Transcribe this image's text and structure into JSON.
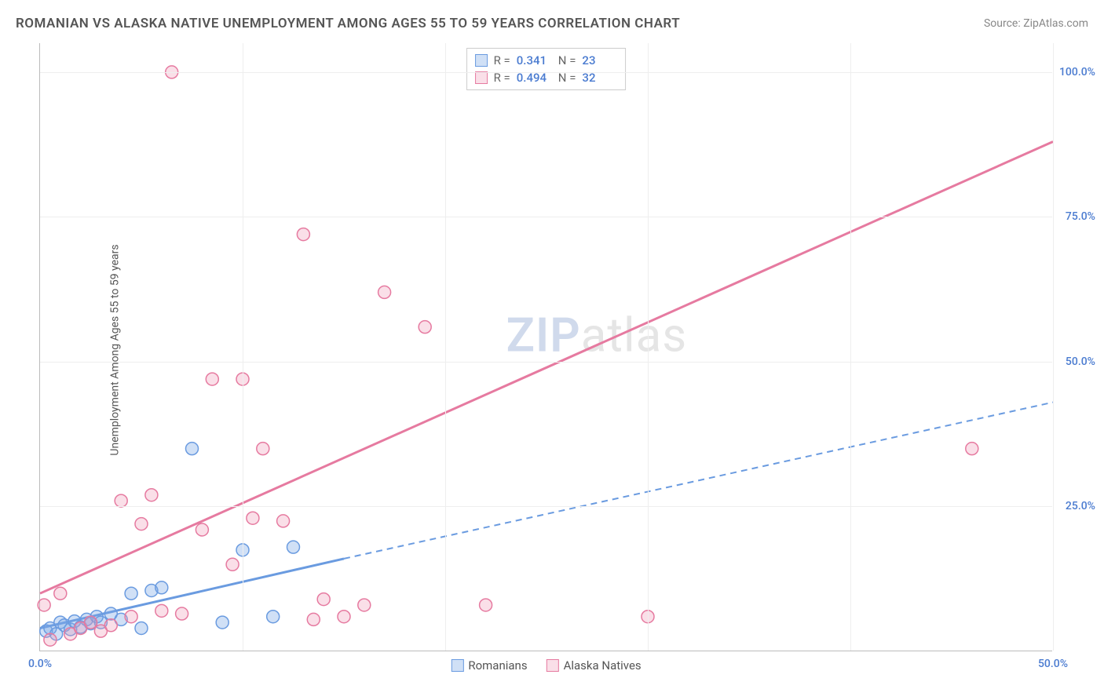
{
  "title": "ROMANIAN VS ALASKA NATIVE UNEMPLOYMENT AMONG AGES 55 TO 59 YEARS CORRELATION CHART",
  "source_prefix": "Source: ",
  "source_name": "ZipAtlas.com",
  "y_axis_label": "Unemployment Among Ages 55 to 59 years",
  "watermark_bold": "ZIP",
  "watermark_rest": "atlas",
  "chart": {
    "type": "scatter",
    "xlim": [
      0,
      50
    ],
    "ylim": [
      0,
      105
    ],
    "x_ticks": [
      0,
      10,
      20,
      30,
      40,
      50
    ],
    "y_ticks": [
      25,
      50,
      75,
      100
    ],
    "x_tick_labels": [
      "0.0%",
      "",
      "",
      "",
      "",
      "50.0%"
    ],
    "y_tick_labels": [
      "25.0%",
      "50.0%",
      "75.0%",
      "100.0%"
    ],
    "tick_color": "#4a7bd0",
    "grid_color": "#eeeeee",
    "axis_color": "#bbbbbb",
    "background_color": "#ffffff",
    "marker_radius": 8,
    "marker_stroke_width": 1.5,
    "line_width_solid": 3,
    "line_width_dashed": 2
  },
  "series": [
    {
      "name": "Romanians",
      "color_fill": "rgba(120,165,230,0.35)",
      "color_stroke": "#6a9be0",
      "R_label": "R =",
      "R": "0.341",
      "N_label": "N =",
      "N": "23",
      "trend": {
        "x1": 0,
        "y1": 4,
        "x2": 15,
        "y2": 16,
        "solid": true
      },
      "trend_ext": {
        "x1": 15,
        "y1": 16,
        "x2": 50,
        "y2": 43,
        "dashed": true
      },
      "points": [
        [
          0.3,
          3.5
        ],
        [
          0.5,
          4
        ],
        [
          0.8,
          3
        ],
        [
          1,
          5
        ],
        [
          1.2,
          4.5
        ],
        [
          1.5,
          3.8
        ],
        [
          1.7,
          5.2
        ],
        [
          2,
          4.2
        ],
        [
          2.3,
          5.5
        ],
        [
          2.5,
          4.8
        ],
        [
          2.8,
          6
        ],
        [
          3,
          5
        ],
        [
          3.5,
          6.5
        ],
        [
          4,
          5.5
        ],
        [
          4.5,
          10
        ],
        [
          5,
          4
        ],
        [
          5.5,
          10.5
        ],
        [
          6,
          11
        ],
        [
          7.5,
          35
        ],
        [
          9,
          5
        ],
        [
          10,
          17.5
        ],
        [
          11.5,
          6
        ],
        [
          12.5,
          18
        ]
      ]
    },
    {
      "name": "Alaska Natives",
      "color_fill": "rgba(240,150,180,0.30)",
      "color_stroke": "#e67aa0",
      "R_label": "R =",
      "R": "0.494",
      "N_label": "N =",
      "N": "32",
      "trend": {
        "x1": 0,
        "y1": 10,
        "x2": 50,
        "y2": 88,
        "solid": true
      },
      "points": [
        [
          0.2,
          8
        ],
        [
          0.5,
          2
        ],
        [
          1,
          10
        ],
        [
          1.5,
          3
        ],
        [
          2,
          4
        ],
        [
          2.5,
          5
        ],
        [
          3,
          3.5
        ],
        [
          3.5,
          4.5
        ],
        [
          4,
          26
        ],
        [
          4.5,
          6
        ],
        [
          5,
          22
        ],
        [
          5.5,
          27
        ],
        [
          6,
          7
        ],
        [
          6.5,
          100
        ],
        [
          7,
          6.5
        ],
        [
          8,
          21
        ],
        [
          8.5,
          47
        ],
        [
          9.5,
          15
        ],
        [
          10,
          47
        ],
        [
          10.5,
          23
        ],
        [
          11,
          35
        ],
        [
          12,
          22.5
        ],
        [
          13,
          72
        ],
        [
          13.5,
          5.5
        ],
        [
          14,
          9
        ],
        [
          15,
          6
        ],
        [
          16,
          8
        ],
        [
          17,
          62
        ],
        [
          19,
          56
        ],
        [
          22,
          8
        ],
        [
          30,
          6
        ],
        [
          46,
          35
        ]
      ]
    }
  ],
  "legend": {
    "items": [
      "Romanians",
      "Alaska Natives"
    ]
  }
}
